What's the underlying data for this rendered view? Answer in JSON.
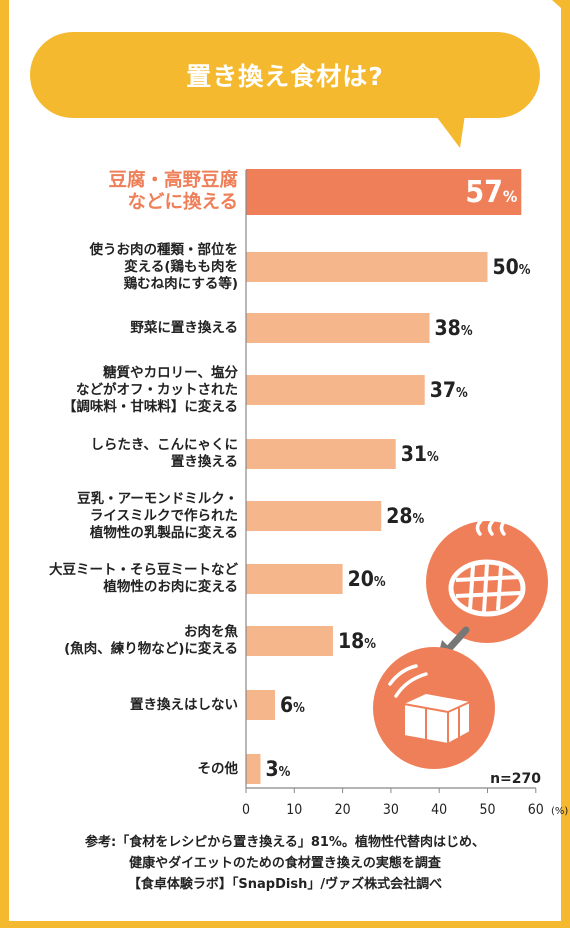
{
  "header": {
    "title": "置き換え食材は?"
  },
  "chart_data": {
    "type": "bar",
    "orientation": "horizontal",
    "title": "置き換え食材は?",
    "categories": [
      [
        "豆腐・高野豆腐",
        "などに換える"
      ],
      [
        "使うお肉の種類・部位を",
        "変える(鶏もも肉を",
        "鶏むね肉にする等)"
      ],
      [
        "野菜に置き換える"
      ],
      [
        "糖質やカロリー、塩分",
        "などがオフ・カットされた",
        "【調味料・甘味料】に変える"
      ],
      [
        "しらたき、こんにゃくに",
        "置き換える"
      ],
      [
        "豆乳・アーモンドミルク・",
        "ライスミルクで作られた",
        "植物性の乳製品に変える"
      ],
      [
        "大豆ミート・そら豆ミートなど",
        "植物性のお肉に変える"
      ],
      [
        "お肉を魚",
        "(魚肉、練り物など)に変える"
      ],
      [
        "置き換えはしない"
      ],
      [
        "その他"
      ]
    ],
    "values": [
      57,
      50,
      38,
      37,
      31,
      28,
      20,
      18,
      6,
      3
    ],
    "value_labels": [
      "57",
      "50",
      "38",
      "37",
      "31",
      "28",
      "20",
      "18",
      "6",
      "3"
    ],
    "value_unit": "%",
    "xlim": [
      0,
      60
    ],
    "xticks": [
      "0",
      "10",
      "20",
      "30",
      "40",
      "50",
      "60"
    ],
    "x_unit": "(%)",
    "n_label": "n=270",
    "highlight_index": 0,
    "colors": {
      "highlight": "#ef7f59",
      "bar": "#f6b68c",
      "axis": "#888888",
      "text": "#222222"
    }
  },
  "icons": [
    "steak-icon",
    "arrow-icon",
    "tofu-icon"
  ],
  "footnote": [
    "参考:「食材をレシピから置き換える」81%。植物性代替肉はじめ、",
    "健康やダイエットのための食材置き換えの実態を調査",
    "【食卓体験ラボ】「SnapDish」/ヴァズ株式会社調べ"
  ],
  "theme": {
    "frame": "#f4b92e",
    "accent": "#ef7f59"
  }
}
